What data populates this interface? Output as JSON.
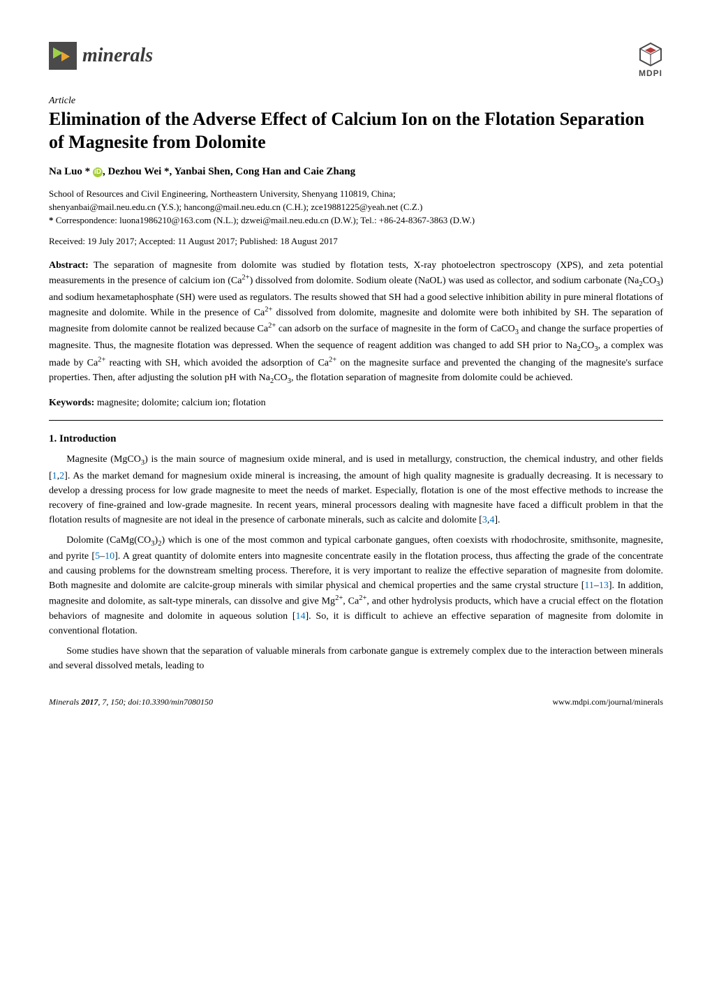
{
  "journal": {
    "name": "minerals",
    "publisher": "MDPI"
  },
  "article": {
    "type": "Article",
    "title": "Elimination of the Adverse Effect of Calcium Ion on the Flotation Separation of Magnesite from Dolomite",
    "authors_html": "Na Luo * <span class=\"orcid\">iD</span>, Dezhou Wei *, Yanbai Shen, Cong Han and Caie Zhang",
    "affiliation": "School of Resources and Civil Engineering, Northeastern University, Shenyang 110819, China;",
    "affiliation_emails": "shenyanbai@mail.neu.edu.cn (Y.S.); hancong@mail.neu.edu.cn (C.H.); zce19881225@yeah.net (C.Z.)",
    "correspondence_label": "*",
    "correspondence": "Correspondence: luona1986210@163.com (N.L.); dzwei@mail.neu.edu.cn (D.W.); Tel.: +86-24-8367-3863 (D.W.)",
    "received": "Received: 19 July 2017; Accepted: 11 August 2017; Published: 18 August 2017",
    "abstract_label": "Abstract:",
    "abstract_html": "The separation of magnesite from dolomite was studied by flotation tests, X-ray photoelectron spectroscopy (XPS), and zeta potential measurements in the presence of calcium ion (Ca<sup>2+</sup>) dissolved from dolomite. Sodium oleate (NaOL) was used as collector, and sodium carbonate (Na<sub>2</sub>CO<sub>3</sub>) and sodium hexametaphosphate (SH) were used as regulators. The results showed that SH had a good selective inhibition ability in pure mineral flotations of magnesite and dolomite. While in the presence of Ca<sup>2+</sup> dissolved from dolomite, magnesite and dolomite were both inhibited by SH. The separation of magnesite from dolomite cannot be realized because Ca<sup>2+</sup> can adsorb on the surface of magnesite in the form of CaCO<sub>3</sub> and change the surface properties of magnesite. Thus, the magnesite flotation was depressed. When the sequence of reagent addition was changed to add SH prior to Na<sub>2</sub>CO<sub>3</sub>, a complex was made by Ca<sup>2+</sup> reacting with SH, which avoided the adsorption of Ca<sup>2+</sup> on the magnesite surface and prevented the changing of the magnesite's surface properties. Then, after adjusting the solution pH with Na<sub>2</sub>CO<sub>3</sub>, the flotation separation of magnesite from dolomite could be achieved.",
    "keywords_label": "Keywords:",
    "keywords": "magnesite; dolomite; calcium ion; flotation"
  },
  "section1": {
    "heading": "1. Introduction",
    "p1_html": "Magnesite (MgCO<sub>3</sub>) is the main source of magnesium oxide mineral, and is used in metallurgy, construction, the chemical industry, and other fields [<span class=\"ref-link\">1</span>,<span class=\"ref-link\">2</span>]. As the market demand for magnesium oxide mineral is increasing, the amount of high quality magnesite is gradually decreasing. It is necessary to develop a dressing process for low grade magnesite to meet the needs of market. Especially, flotation is one of the most effective methods to increase the recovery of fine-grained and low-grade magnesite. In recent years, mineral processors dealing with magnesite have faced a difficult problem in that the flotation results of magnesite are not ideal in the presence of carbonate minerals, such as calcite and dolomite [<span class=\"ref-link\">3</span>,<span class=\"ref-link\">4</span>].",
    "p2_html": "Dolomite (CaMg(CO<sub>3</sub>)<sub>2</sub>) which is one of the most common and typical carbonate gangues, often coexists with rhodochrosite, smithsonite, magnesite, and pyrite [<span class=\"ref-link\">5</span>–<span class=\"ref-link\">10</span>]. A great quantity of dolomite enters into magnesite concentrate easily in the flotation process, thus affecting the grade of the concentrate and causing problems for the downstream smelting process. Therefore, it is very important to realize the effective separation of magnesite from dolomite. Both magnesite and dolomite are calcite-group minerals with similar physical and chemical properties and the same crystal structure [<span class=\"ref-link\">11</span>–<span class=\"ref-link\">13</span>]. In addition, magnesite and dolomite, as salt-type minerals, can dissolve and give Mg<sup>2+</sup>, Ca<sup>2+</sup>, and other hydrolysis products, which have a crucial effect on the flotation behaviors of magnesite and dolomite in aqueous solution [<span class=\"ref-link\">14</span>]. So, it is difficult to achieve an effective separation of magnesite from dolomite in conventional flotation.",
    "p3_html": "Some studies have shown that the separation of valuable minerals from carbonate gangue is extremely complex due to the interaction between minerals and several dissolved metals, leading to"
  },
  "footer": {
    "left_html": "<i>Minerals</i> <b class=\"vol\">2017</b>, <i>7</i>, 150; doi:10.3390/min7080150",
    "right": "www.mdpi.com/journal/minerals"
  },
  "style": {
    "title_fontsize": 26,
    "body_fontsize": 14,
    "ref_color": "#0070c0",
    "orcid_bg": "#a6ce39"
  }
}
